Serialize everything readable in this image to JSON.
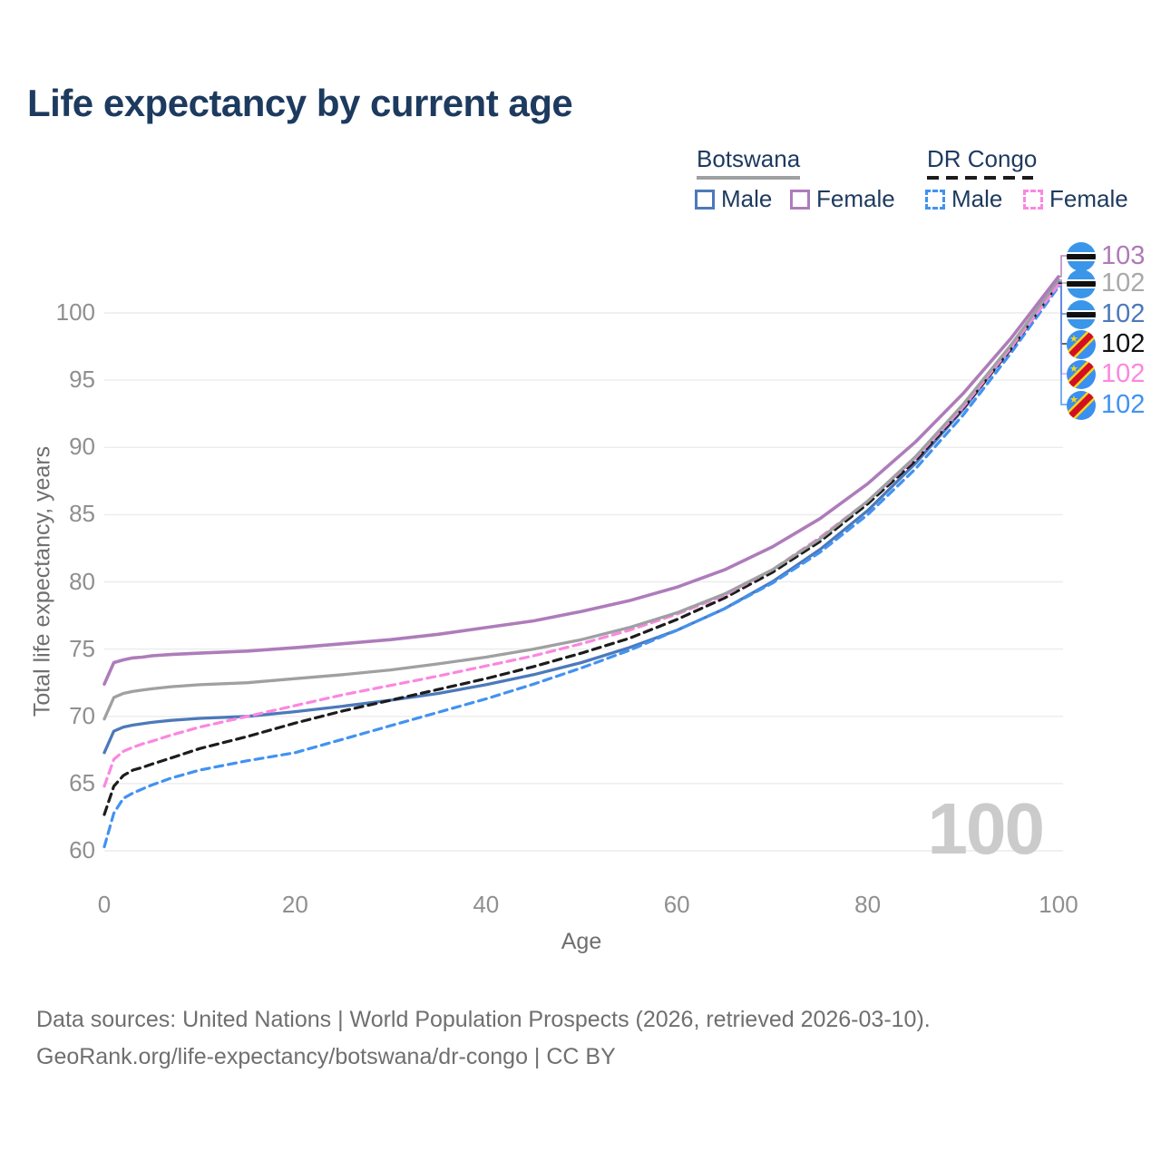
{
  "title": "Life expectancy by current age",
  "legend": {
    "groups": [
      {
        "label": "Botswana",
        "line_style": "solid",
        "line_color": "#9fa0a2",
        "items": [
          {
            "label": "Male",
            "color": "#4c79ba",
            "dashed": false
          },
          {
            "label": "Female",
            "color": "#ae7cba",
            "dashed": false
          }
        ]
      },
      {
        "label": "DR Congo",
        "line_style": "dashed",
        "line_color": "#1c1c1c",
        "items": [
          {
            "label": "Male",
            "color": "#4192f2",
            "dashed": true
          },
          {
            "label": "Female",
            "color": "#fb87e0",
            "dashed": true
          }
        ]
      }
    ]
  },
  "watermark_age": "100",
  "footer": {
    "line1": "Data sources: United Nations | World Population Prospects (2026, retrieved 2026-03-10).",
    "line2": "GeoRank.org/life-expectancy/botswana/dr-congo | CC BY"
  },
  "chart_data": {
    "type": "line",
    "title": "Life expectancy by current age",
    "xlabel": "Age",
    "ylabel": "Total life expectancy, years",
    "xlim": [
      0,
      100
    ],
    "ylim": [
      60,
      103
    ],
    "xticks": [
      0,
      20,
      40,
      60,
      80,
      100
    ],
    "yticks": [
      60,
      65,
      70,
      75,
      80,
      85,
      90,
      95,
      100
    ],
    "grid": "horizontal-only",
    "legend_position": "top-right",
    "x": [
      0,
      1,
      2,
      3,
      4,
      5,
      7,
      10,
      15,
      20,
      25,
      30,
      35,
      40,
      45,
      50,
      55,
      60,
      65,
      70,
      75,
      80,
      85,
      90,
      95,
      100
    ],
    "series": [
      {
        "name": "Botswana Female",
        "country": "Botswana",
        "sex": "Female",
        "style": "solid",
        "color": "#ae7cba",
        "width": 3.6,
        "end_label": "103",
        "label_color": "#b07ab8",
        "label_order": 0,
        "values": [
          72.4,
          74.0,
          74.2,
          74.35,
          74.4,
          74.5,
          74.6,
          74.7,
          74.85,
          75.1,
          75.4,
          75.7,
          76.1,
          76.6,
          77.1,
          77.8,
          78.6,
          79.6,
          80.9,
          82.6,
          84.7,
          87.3,
          90.4,
          94.0,
          98.1,
          102.7
        ]
      },
      {
        "name": "Botswana Both sexes",
        "country": "Botswana",
        "sex": "All",
        "style": "solid",
        "color": "#9fa0a2",
        "width": 3.3,
        "end_label": "102",
        "label_color": "#a9a9a9",
        "label_order": 1,
        "values": [
          69.8,
          71.4,
          71.7,
          71.85,
          71.95,
          72.05,
          72.2,
          72.35,
          72.5,
          72.8,
          73.1,
          73.45,
          73.9,
          74.4,
          75.0,
          75.7,
          76.6,
          77.7,
          79.1,
          80.9,
          83.2,
          86.0,
          89.3,
          93.2,
          97.6,
          102.45
        ]
      },
      {
        "name": "Botswana Male",
        "country": "Botswana",
        "sex": "Male",
        "style": "solid",
        "color": "#4c79ba",
        "width": 3.3,
        "end_label": "102",
        "label_color": "#4c79ba",
        "label_order": 2,
        "values": [
          67.3,
          68.9,
          69.2,
          69.35,
          69.45,
          69.55,
          69.7,
          69.85,
          70.0,
          70.35,
          70.75,
          71.2,
          71.7,
          72.35,
          73.1,
          74.0,
          75.1,
          76.4,
          78.0,
          80.0,
          82.4,
          85.3,
          88.8,
          92.8,
          97.4,
          102.3
        ]
      },
      {
        "name": "DR Congo Both sexes",
        "country": "DR Congo",
        "sex": "All",
        "style": "dashed",
        "color": "#1c1c1c",
        "width": 3.2,
        "end_label": "102",
        "label_color": "#111111",
        "label_order": 3,
        "values": [
          62.7,
          64.8,
          65.6,
          66.0,
          66.2,
          66.45,
          66.9,
          67.6,
          68.5,
          69.5,
          70.4,
          71.2,
          72.0,
          72.8,
          73.7,
          74.7,
          75.8,
          77.2,
          78.8,
          80.7,
          83.0,
          85.8,
          89.0,
          92.9,
          97.3,
          102.2
        ]
      },
      {
        "name": "DR Congo Female",
        "country": "DR Congo",
        "sex": "Female",
        "style": "dashed",
        "color": "#fb87e0",
        "width": 3.2,
        "end_label": "102",
        "label_color": "#fb87e0",
        "label_order": 4,
        "values": [
          64.8,
          66.8,
          67.4,
          67.7,
          67.95,
          68.15,
          68.6,
          69.2,
          70.0,
          70.8,
          71.6,
          72.3,
          73.0,
          73.75,
          74.5,
          75.4,
          76.4,
          77.6,
          79.0,
          80.9,
          83.3,
          86.0,
          89.2,
          93.0,
          97.4,
          102.1
        ]
      },
      {
        "name": "DR Congo Male",
        "country": "DR Congo",
        "sex": "Male",
        "style": "dashed",
        "color": "#4192f2",
        "width": 3.2,
        "end_label": "102",
        "label_color": "#4192f2",
        "label_order": 5,
        "values": [
          60.3,
          62.8,
          63.9,
          64.3,
          64.6,
          64.9,
          65.4,
          66.0,
          66.7,
          67.3,
          68.3,
          69.3,
          70.3,
          71.3,
          72.4,
          73.6,
          74.9,
          76.4,
          78.0,
          79.9,
          82.2,
          85.0,
          88.4,
          92.4,
          97.0,
          101.95
        ]
      }
    ]
  }
}
